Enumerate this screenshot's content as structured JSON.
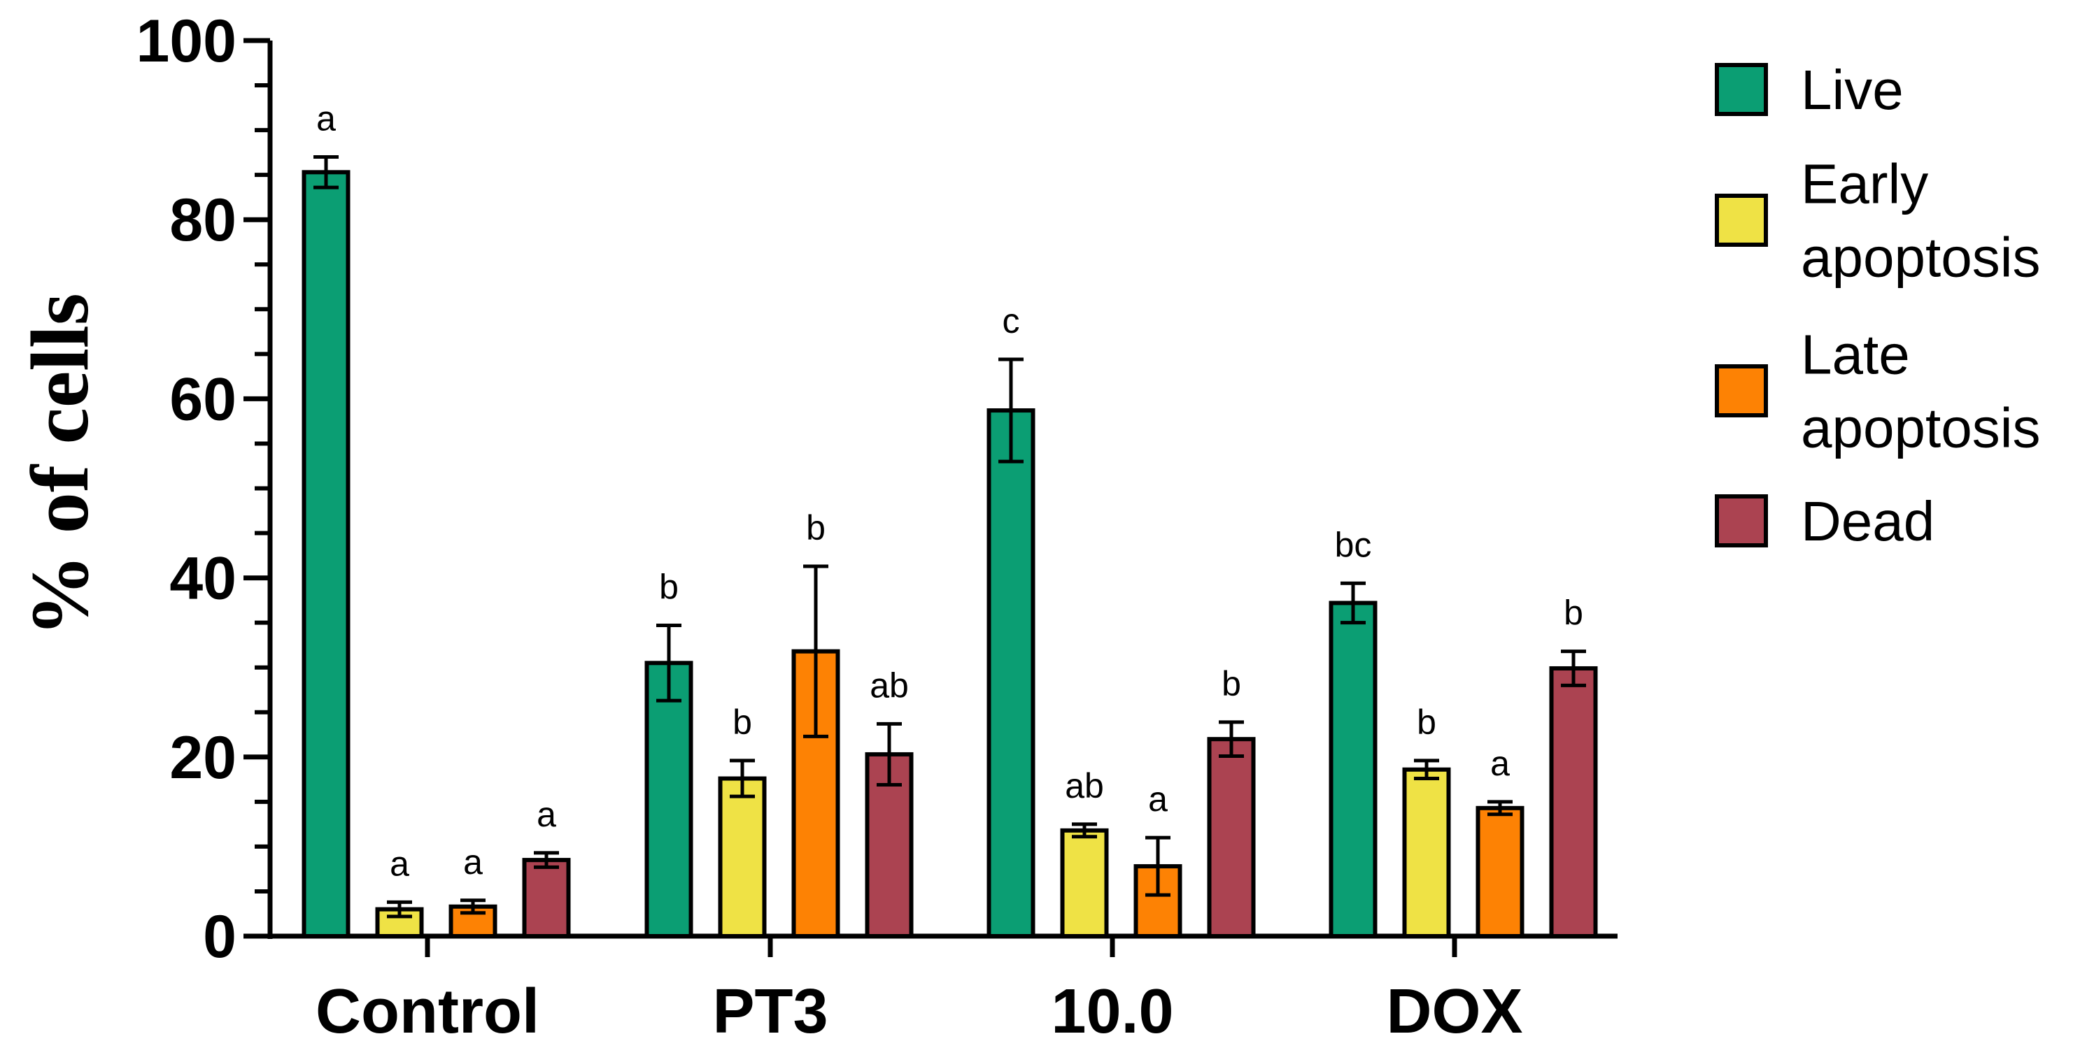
{
  "chart_data": {
    "type": "bar",
    "title": "",
    "xlabel": "",
    "ylabel": "% of cells",
    "ylim": [
      0,
      100
    ],
    "yticks": [
      "0",
      "20",
      "40",
      "60",
      "80",
      "100"
    ],
    "grid": false,
    "legend_position": "right",
    "categories": [
      "Control",
      "PT3",
      "10.0",
      "DOX"
    ],
    "series": [
      {
        "name": "Live",
        "color": "#0b9e73",
        "values": [
          85.3,
          30.5,
          58.7,
          37.2
        ],
        "errors": [
          1.7,
          4.2,
          5.7,
          2.2
        ],
        "labels": [
          "a",
          "b",
          "c",
          "bc"
        ]
      },
      {
        "name": "Early apoptosis",
        "color": "#efe245",
        "values": [
          3.0,
          17.6,
          11.8,
          18.6
        ],
        "errors": [
          0.8,
          2.0,
          0.7,
          1.0
        ],
        "labels": [
          "a",
          "b",
          "ab",
          "b"
        ]
      },
      {
        "name": "Late apoptosis",
        "color": "#fd8204",
        "values": [
          3.3,
          31.8,
          7.8,
          14.3
        ],
        "errors": [
          0.7,
          9.5,
          3.2,
          0.7
        ],
        "labels": [
          "a",
          "b",
          "a",
          "a"
        ]
      },
      {
        "name": "Dead",
        "color": "#ab4351",
        "values": [
          8.5,
          20.3,
          22.0,
          29.9
        ],
        "errors": [
          0.8,
          3.4,
          1.9,
          1.9
        ],
        "labels": [
          "a",
          "ab",
          "b",
          "b"
        ]
      }
    ],
    "legend": [
      {
        "lines": [
          "Live"
        ]
      },
      {
        "lines": [
          "Early",
          "apoptosis"
        ]
      },
      {
        "lines": [
          "Late",
          "apoptosis"
        ]
      },
      {
        "lines": [
          "Dead"
        ]
      }
    ]
  }
}
